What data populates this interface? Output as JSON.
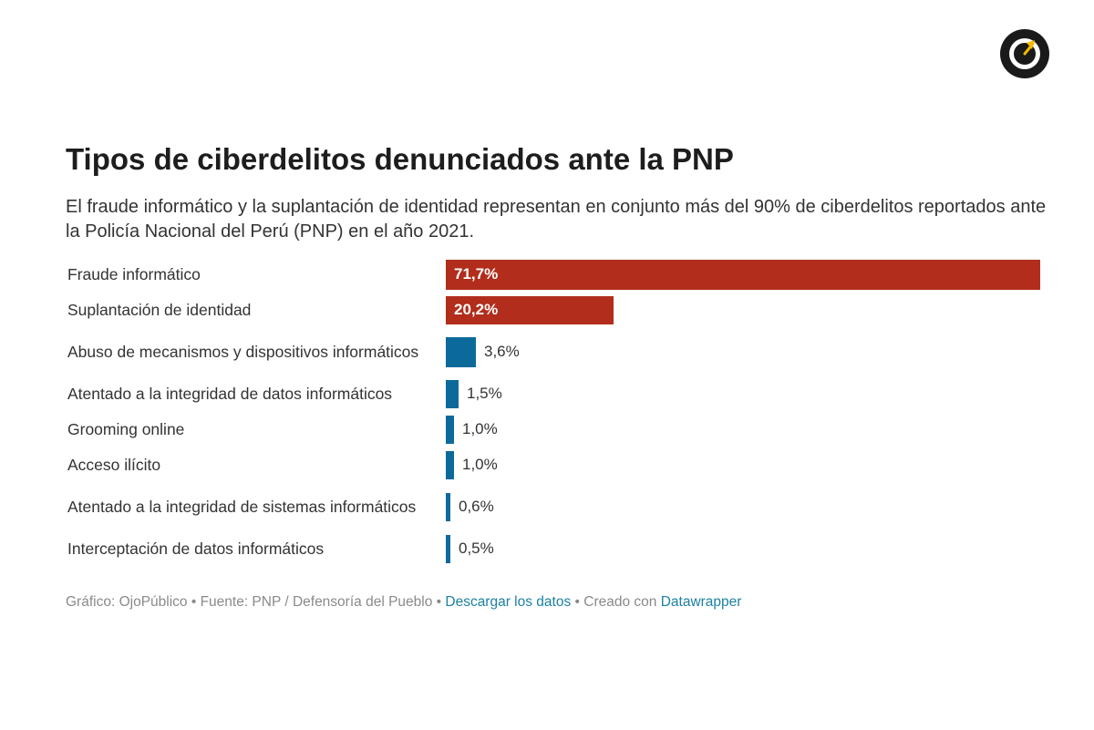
{
  "chart_data": {
    "type": "bar",
    "orientation": "horizontal",
    "title": "Tipos de ciberdelitos denunciados ante la PNP",
    "subtitle": "El fraude informático y la suplantación de identidad representan en conjunto más del 90% de ciberdelitos reportados ante la Policía Nacional del Perú (PNP) en el año 2021.",
    "categories": [
      "Fraude informático",
      "Suplantación de identidad",
      "Abuso de mecanismos y dispositivos informáticos",
      "Atentado a la integridad de datos informáticos",
      "Grooming online",
      "Acceso ilícito",
      "Atentado a la integridad de sistemas informáticos",
      "Interceptación de datos informáticos"
    ],
    "values": [
      71.7,
      20.2,
      3.6,
      1.5,
      1.0,
      1.0,
      0.6,
      0.5
    ],
    "value_labels": [
      "71,7%",
      "20,2%",
      "3,6%",
      "1,5%",
      "1,0%",
      "1,0%",
      "0,6%",
      "0,5%"
    ],
    "colors": [
      "#b22d1b",
      "#b22d1b",
      "#0c6a9b",
      "#0c6a9b",
      "#0c6a9b",
      "#0c6a9b",
      "#0c6a9b",
      "#0c6a9b"
    ],
    "xlim": [
      0,
      71.7
    ],
    "grid": false,
    "legend": "none"
  },
  "footer": {
    "credit": "Gráfico: OjoPúblico • Fuente: PNP / Defensoría del Pueblo • ",
    "download_link": "Descargar los datos",
    "created_with": " • Creado con ",
    "tool_link": "Datawrapper"
  },
  "logo": {
    "icon": "ojopublico-eye-logo",
    "colors": [
      "#1a1a1a",
      "#f5b800"
    ]
  }
}
